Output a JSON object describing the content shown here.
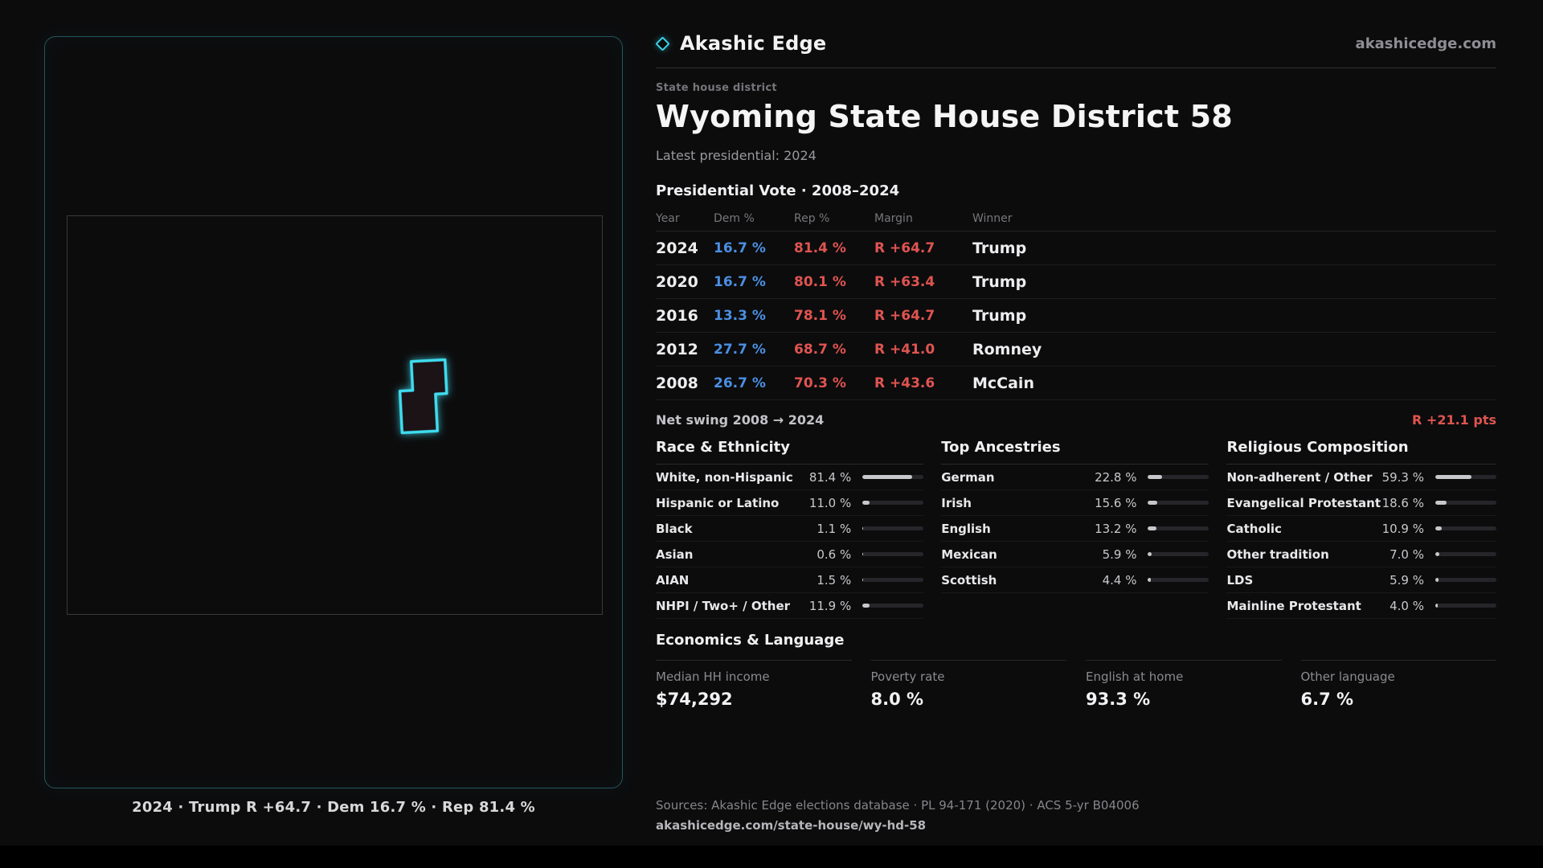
{
  "brand": {
    "name": "Akashic Edge",
    "domain": "akashicedge.com"
  },
  "header": {
    "kicker": "State house district",
    "title": "Wyoming State House District 58",
    "latest": "Latest presidential: 2024"
  },
  "map": {
    "caption": "2024 · Trump R +64.7 · Dem 16.7 % · Rep 81.4 %"
  },
  "vote_table": {
    "title": "Presidential Vote · 2008–2024",
    "columns": [
      "Year",
      "Dem %",
      "Rep %",
      "Margin",
      "Winner"
    ],
    "rows": [
      {
        "year": "2024",
        "dem": "16.7 %",
        "rep": "81.4 %",
        "margin": "R +64.7",
        "winner": "Trump"
      },
      {
        "year": "2020",
        "dem": "16.7 %",
        "rep": "80.1 %",
        "margin": "R +63.4",
        "winner": "Trump"
      },
      {
        "year": "2016",
        "dem": "13.3 %",
        "rep": "78.1 %",
        "margin": "R +64.7",
        "winner": "Trump"
      },
      {
        "year": "2012",
        "dem": "27.7 %",
        "rep": "68.7 %",
        "margin": "R +41.0",
        "winner": "Romney"
      },
      {
        "year": "2008",
        "dem": "26.7 %",
        "rep": "70.3 %",
        "margin": "R +43.6",
        "winner": "McCain"
      }
    ]
  },
  "net_swing": {
    "label": "Net swing 2008 → 2024",
    "value": "R +21.1 pts"
  },
  "demographics": [
    {
      "title": "Race & Ethnicity",
      "rows": [
        {
          "label": "White, non-Hispanic",
          "value": "81.4 %",
          "pct": 81.4
        },
        {
          "label": "Hispanic or Latino",
          "value": "11.0 %",
          "pct": 11.0
        },
        {
          "label": "Black",
          "value": "1.1 %",
          "pct": 1.1
        },
        {
          "label": "Asian",
          "value": "0.6 %",
          "pct": 0.6
        },
        {
          "label": "AIAN",
          "value": "1.5 %",
          "pct": 1.5
        },
        {
          "label": "NHPI / Two+ / Other",
          "value": "11.9 %",
          "pct": 11.9
        }
      ]
    },
    {
      "title": "Top Ancestries",
      "rows": [
        {
          "label": "German",
          "value": "22.8 %",
          "pct": 22.8
        },
        {
          "label": "Irish",
          "value": "15.6 %",
          "pct": 15.6
        },
        {
          "label": "English",
          "value": "13.2 %",
          "pct": 13.2
        },
        {
          "label": "Mexican",
          "value": "5.9 %",
          "pct": 5.9
        },
        {
          "label": "Scottish",
          "value": "4.4 %",
          "pct": 4.4
        }
      ]
    },
    {
      "title": "Religious Composition",
      "rows": [
        {
          "label": "Non-adherent / Other",
          "value": "59.3 %",
          "pct": 59.3
        },
        {
          "label": "Evangelical Protestant",
          "value": "18.6 %",
          "pct": 18.6
        },
        {
          "label": "Catholic",
          "value": "10.9 %",
          "pct": 10.9
        },
        {
          "label": "Other tradition",
          "value": "7.0 %",
          "pct": 7.0
        },
        {
          "label": "LDS",
          "value": "5.9 %",
          "pct": 5.9
        },
        {
          "label": "Mainline Protestant",
          "value": "4.0 %",
          "pct": 4.0
        }
      ]
    }
  ],
  "economics": {
    "title": "Economics & Language",
    "stats": [
      {
        "label": "Median HH income",
        "value": "$74,292"
      },
      {
        "label": "Poverty rate",
        "value": "8.0 %"
      },
      {
        "label": "English at home",
        "value": "93.3 %"
      },
      {
        "label": "Other language",
        "value": "6.7 %"
      }
    ]
  },
  "footer": {
    "sources": "Sources: Akashic Edge elections database · PL 94-171 (2020) · ACS 5-yr B04006",
    "permalink": "akashicedge.com/state-house/wy-hd-58"
  },
  "colors": {
    "accent": "#3ad3e6",
    "dem": "#4b8fe2",
    "rep": "#e05450"
  }
}
